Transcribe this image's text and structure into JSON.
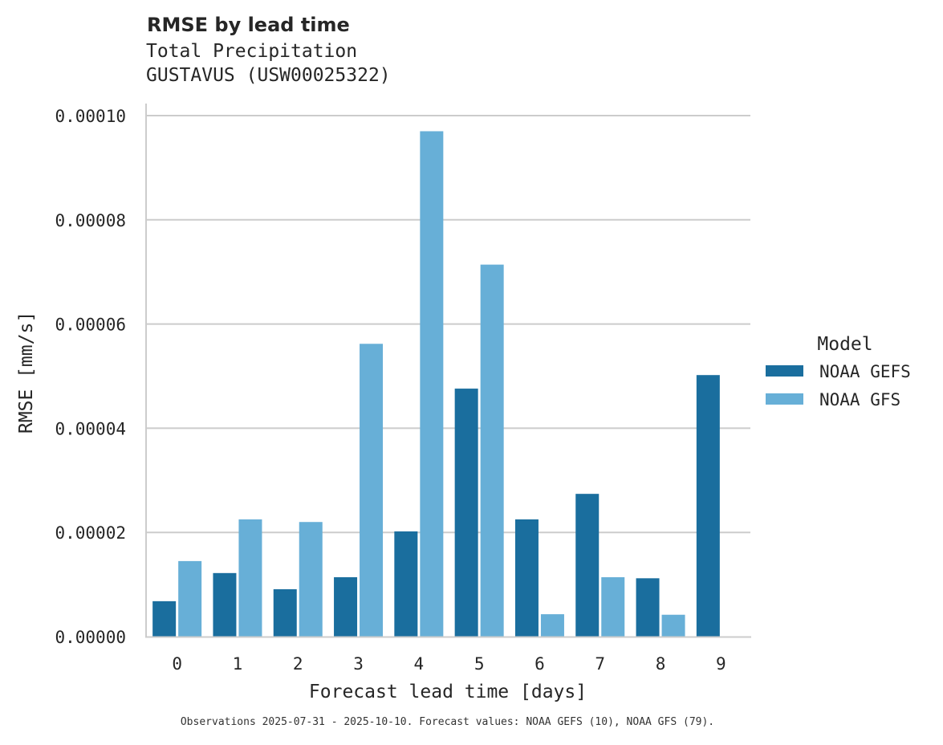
{
  "header": {
    "title": "RMSE by lead time",
    "subtitle_line1": "Total Precipitation",
    "subtitle_line2": "GUSTAVUS (USW00025322)"
  },
  "axes": {
    "xlabel": "Forecast lead time [days]",
    "ylabel": "RMSE [mm/s]",
    "yticks": [
      "0.00000",
      "0.00002",
      "0.00004",
      "0.00006",
      "0.00008",
      "0.00010"
    ],
    "xticks": [
      "0",
      "1",
      "2",
      "3",
      "4",
      "5",
      "6",
      "7",
      "8",
      "9"
    ]
  },
  "legend": {
    "title": "Model",
    "items": [
      {
        "label": "NOAA GEFS",
        "color": "#1a6e9e"
      },
      {
        "label": "NOAA GFS",
        "color": "#67afd7"
      }
    ]
  },
  "footer": {
    "note": "Observations 2025-07-31 - 2025-10-10. Forecast values: NOAA GEFS (10), NOAA GFS (79)."
  },
  "chart_data": {
    "type": "bar",
    "title": "RMSE by lead time",
    "subtitle": "Total Precipitation / GUSTAVUS (USW00025322)",
    "xlabel": "Forecast lead time [days]",
    "ylabel": "RMSE [mm/s]",
    "categories": [
      "0",
      "1",
      "2",
      "3",
      "4",
      "5",
      "6",
      "7",
      "8",
      "9"
    ],
    "series": [
      {
        "name": "NOAA GEFS",
        "color": "#1a6e9e",
        "values": [
          6.8e-06,
          1.22e-05,
          9.1e-06,
          1.14e-05,
          2.02e-05,
          4.76e-05,
          2.25e-05,
          2.74e-05,
          1.12e-05,
          5.02e-05
        ]
      },
      {
        "name": "NOAA GFS",
        "color": "#67afd7",
        "values": [
          1.45e-05,
          2.25e-05,
          2.2e-05,
          5.62e-05,
          9.7e-05,
          7.14e-05,
          4.3e-06,
          1.14e-05,
          4.2e-06,
          null
        ]
      }
    ],
    "ylim": [
      0,
      0.0001
    ],
    "yticks": [
      0,
      2e-05,
      4e-05,
      6e-05,
      8e-05,
      0.0001
    ],
    "grid": "horizontal",
    "legend_position": "right",
    "legend_title": "Model"
  }
}
